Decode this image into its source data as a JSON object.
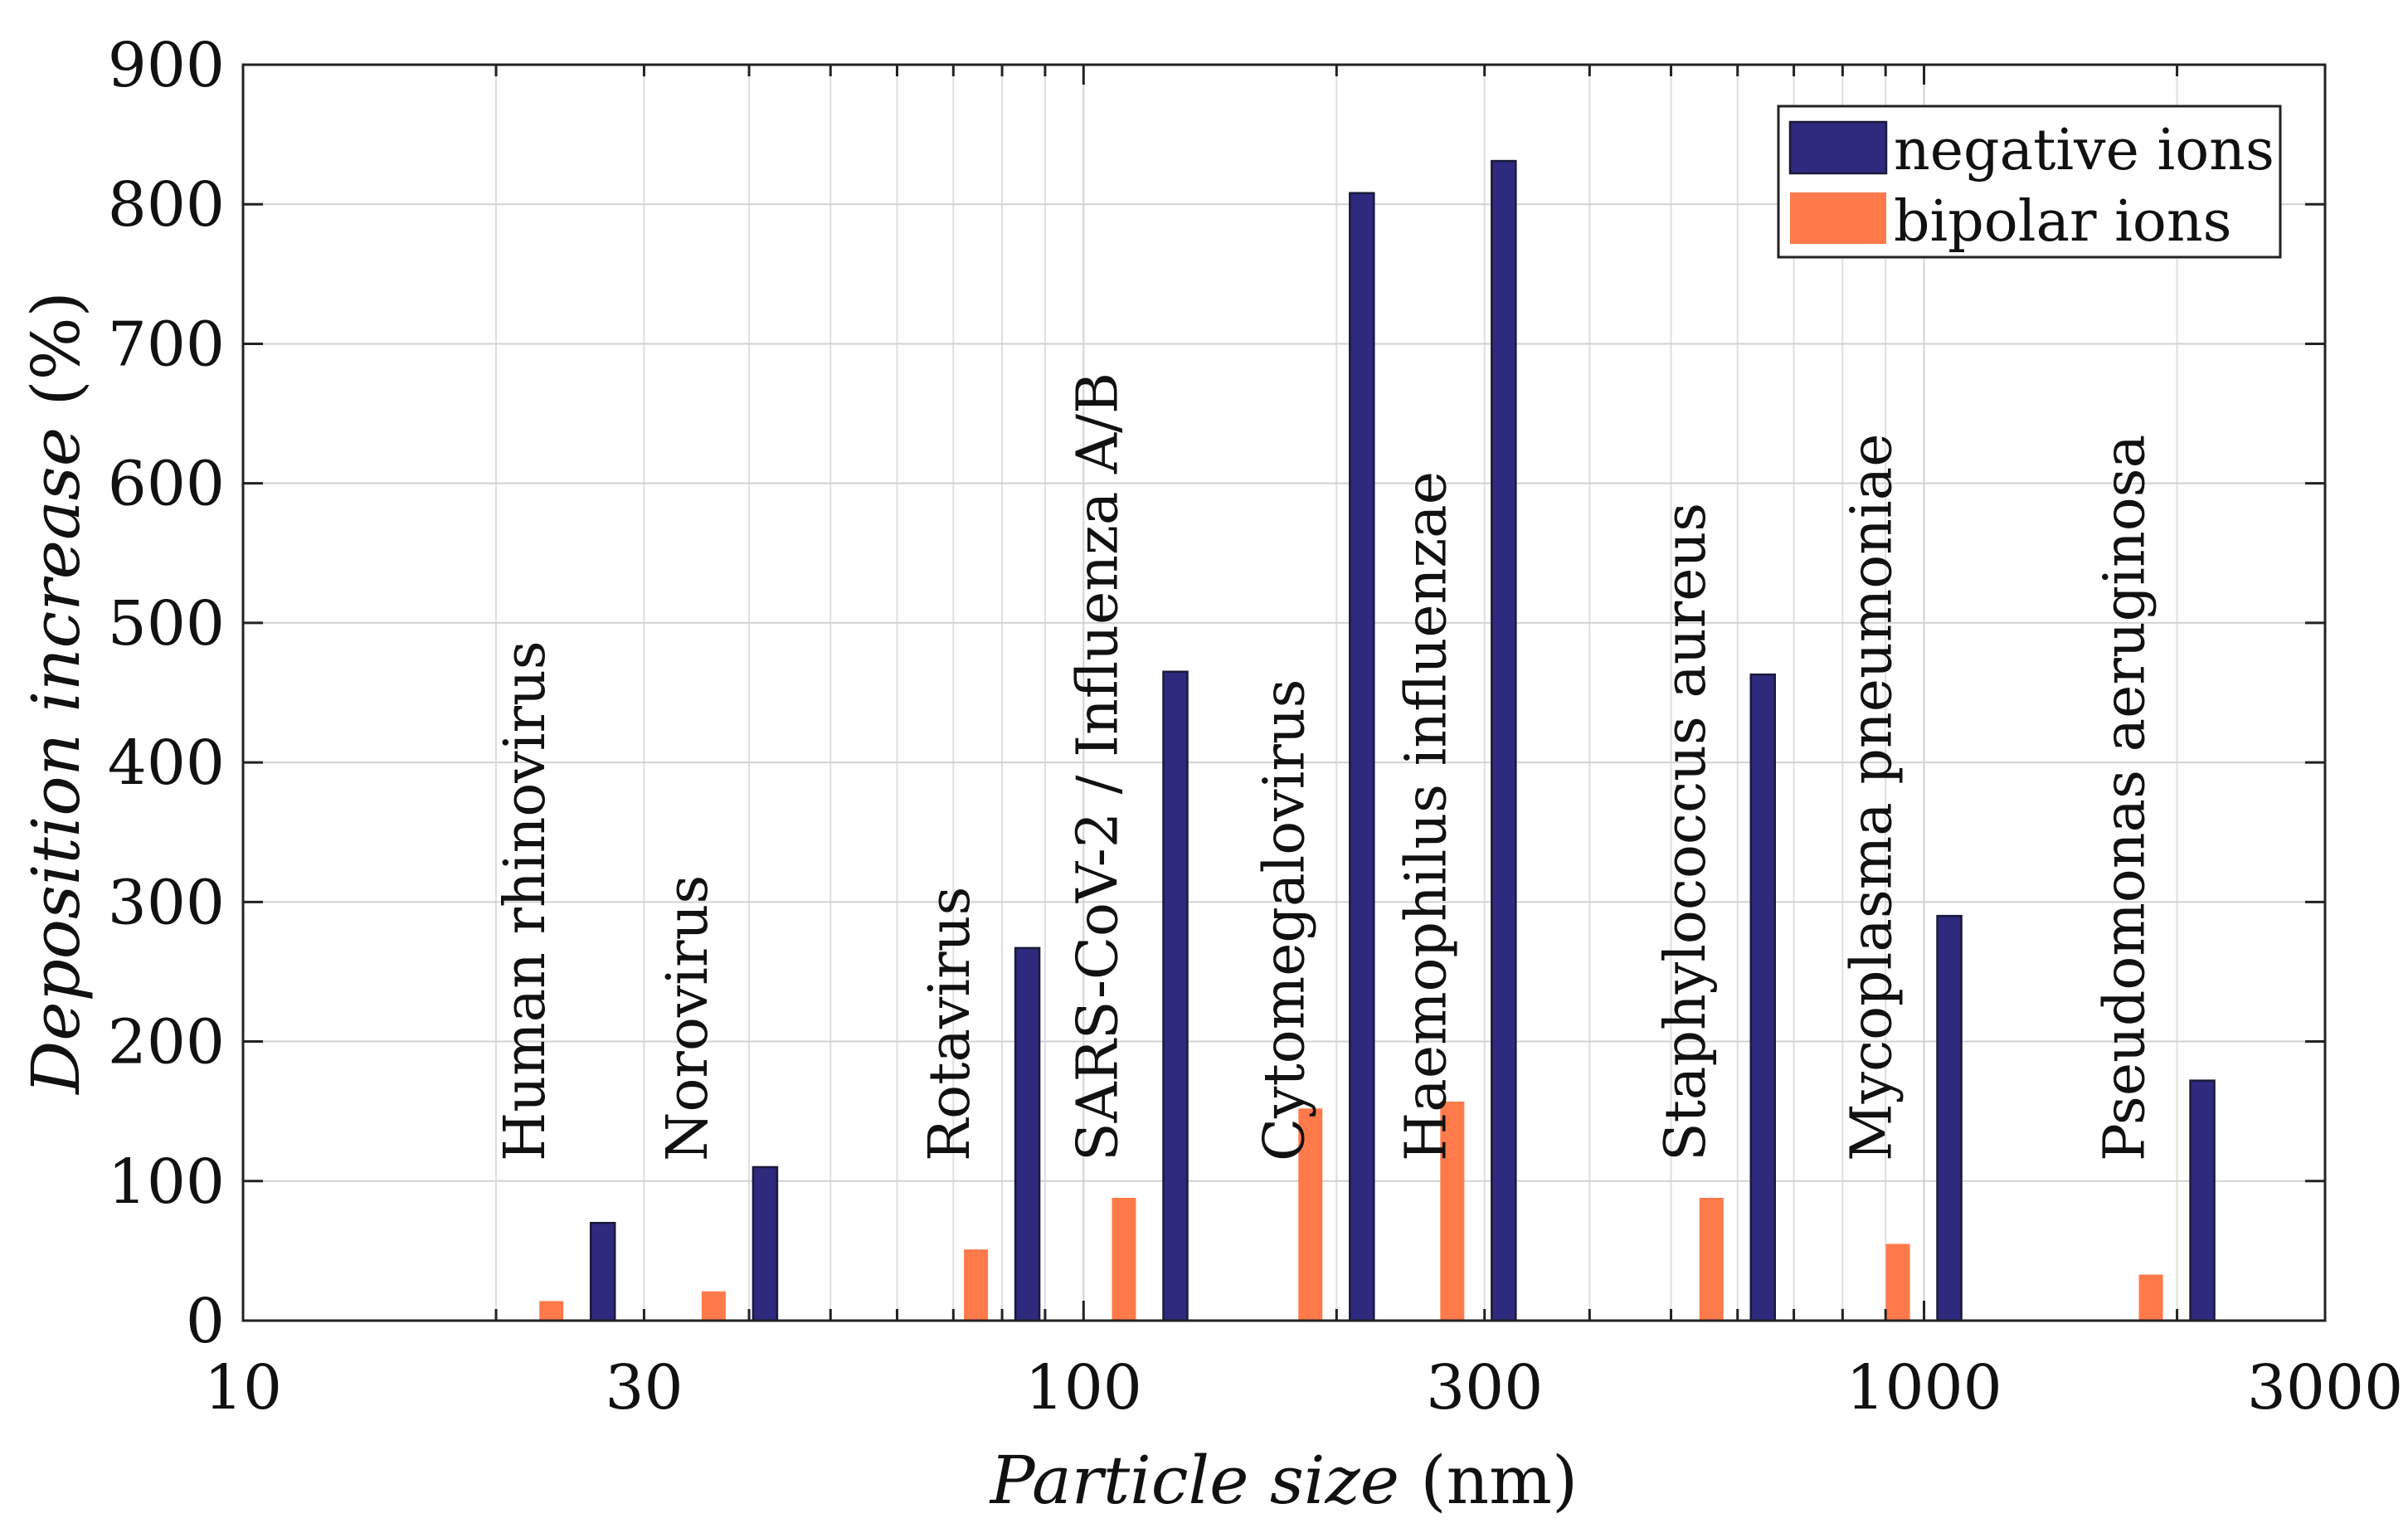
{
  "chart_data": {
    "type": "bar",
    "title": "",
    "xlabel_italic": "Particle size",
    "xlabel_unit": " (nm)",
    "ylabel_italic": "Deposition increase",
    "ylabel_unit": " (%)",
    "xscale": "log",
    "xlim": [
      10,
      3000
    ],
    "ylim": [
      0,
      900
    ],
    "grid": true,
    "legend_position": "top-right",
    "x_ticks": [
      10,
      30,
      100,
      300,
      1000,
      3000
    ],
    "y_ticks": [
      0,
      100,
      200,
      300,
      400,
      500,
      600,
      700,
      800,
      900
    ],
    "colors": {
      "negative": "#2e2a7e",
      "bipolar": "#ff7a4a"
    },
    "series": [
      {
        "name": "negative ions",
        "key": "negative"
      },
      {
        "name": "bipolar ions",
        "key": "bipolar"
      }
    ],
    "categories": [
      {
        "label": "Human rhinovirus",
        "size_nm": 25,
        "negative": 70,
        "bipolar": 14
      },
      {
        "label": "Norovirus",
        "size_nm": 39,
        "negative": 110,
        "bipolar": 21
      },
      {
        "label": "Rotavirus",
        "size_nm": 80,
        "negative": 267,
        "bipolar": 51
      },
      {
        "label": "SARS-CoV-2 / Influenza A/B",
        "size_nm": 120,
        "negative": 465,
        "bipolar": 88
      },
      {
        "label": "Cytomegalovirus",
        "size_nm": 200,
        "negative": 808,
        "bipolar": 152
      },
      {
        "label": "Haemophilus influenzae",
        "size_nm": 295,
        "negative": 831,
        "bipolar": 157
      },
      {
        "label": "Staphylococcus aureus",
        "size_nm": 600,
        "negative": 463,
        "bipolar": 88
      },
      {
        "label": "Mycoplasma pneumoniae",
        "size_nm": 1000,
        "negative": 290,
        "bipolar": 55
      },
      {
        "label": "Pseudomonas aeruginosa",
        "size_nm": 2000,
        "negative": 172,
        "bipolar": 33
      }
    ]
  }
}
